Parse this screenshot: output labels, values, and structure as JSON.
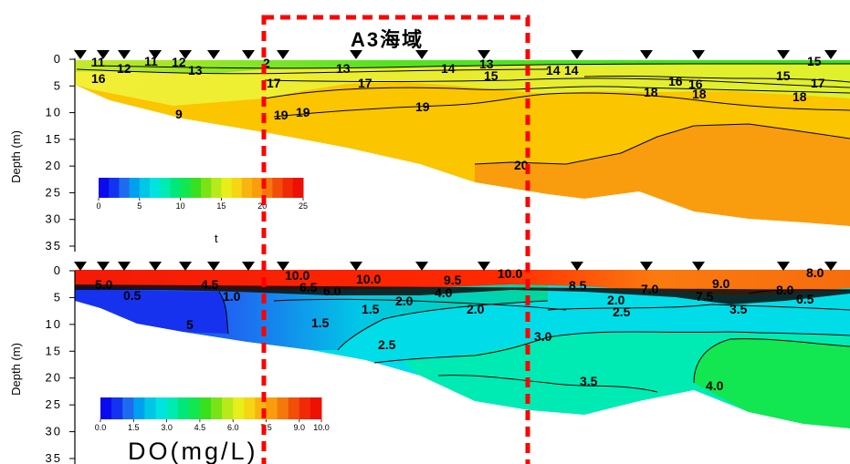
{
  "chart_data": [
    {
      "type": "heatmap",
      "ylabel": "Depth (m)",
      "y_ticks": [
        0,
        5,
        10,
        15,
        20,
        25,
        30,
        35
      ],
      "ylim": [
        35,
        0
      ],
      "colorbar": {
        "label": "t",
        "ticks": [
          "0",
          "5",
          "10",
          "15",
          "20",
          "25"
        ],
        "range": [
          0,
          25
        ]
      },
      "contour_labels": [
        "11",
        "12",
        "11",
        "12",
        "13",
        "16",
        "2",
        "17",
        "13",
        "17",
        "19",
        "19",
        "19",
        "14",
        "13",
        "15",
        "14",
        "14",
        "18",
        "16",
        "16",
        "18",
        "15",
        "15",
        "17",
        "18",
        "20",
        "9"
      ],
      "station_markers": 16
    },
    {
      "type": "heatmap",
      "ylabel": "Depth (m)",
      "y_ticks": [
        0,
        5,
        10,
        15,
        20,
        25,
        30,
        35
      ],
      "ylim": [
        35,
        0
      ],
      "colorbar": {
        "label": "DO(mg/L)",
        "ticks": [
          "0.0",
          "1.5",
          "3.0",
          "4.5",
          "6.0",
          "7.5",
          "9.0",
          "10.0"
        ],
        "range": [
          0,
          10
        ]
      },
      "contour_labels": [
        "5.0",
        "0.5",
        "4.5",
        "1.0",
        "10.0",
        "6.5",
        "10.0",
        "6.0",
        "1.5",
        "2.0",
        "4.0",
        "9.5",
        "10.0",
        "2.0",
        "8.5",
        "2.0",
        "2.5",
        "7.0",
        "9.0",
        "7.5",
        "3.5",
        "8.0",
        "8.0",
        "6.5",
        "1.5",
        "2.5",
        "5",
        "3.0",
        "3.5",
        "4.0"
      ],
      "station_markers": 16
    }
  ],
  "annotation": {
    "label": "A3海域",
    "style": "red dashed box"
  },
  "colors": {
    "highlight": "#ff0000",
    "warm": "#fbc500",
    "orange": "#f99d0f",
    "green": "#2ee01c"
  }
}
